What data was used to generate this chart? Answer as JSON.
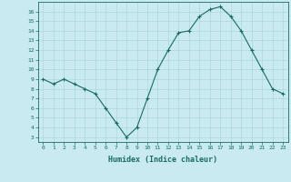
{
  "x": [
    0,
    1,
    2,
    3,
    4,
    5,
    6,
    7,
    8,
    9,
    10,
    11,
    12,
    13,
    14,
    15,
    16,
    17,
    18,
    19,
    20,
    21,
    22,
    23
  ],
  "y": [
    9,
    8.5,
    9,
    8.5,
    8,
    7.5,
    6,
    4.5,
    3,
    4,
    7,
    10,
    12,
    13.8,
    14,
    15.5,
    16.2,
    16.5,
    15.5,
    14,
    12,
    10,
    8,
    7.5
  ],
  "line_color": "#1a6b5e",
  "marker": "+",
  "bg_color": "#c8eaf0",
  "grid_color": "#aed6dc",
  "xlabel": "Humidex (Indice chaleur)",
  "xlim": [
    -0.5,
    23.5
  ],
  "ylim": [
    2.5,
    17
  ],
  "yticks": [
    3,
    4,
    5,
    6,
    7,
    8,
    9,
    10,
    11,
    12,
    13,
    14,
    15,
    16
  ],
  "xticks": [
    0,
    1,
    2,
    3,
    4,
    5,
    6,
    7,
    8,
    9,
    10,
    11,
    12,
    13,
    14,
    15,
    16,
    17,
    18,
    19,
    20,
    21,
    22,
    23
  ],
  "figsize": [
    3.2,
    2.0
  ],
  "dpi": 100
}
